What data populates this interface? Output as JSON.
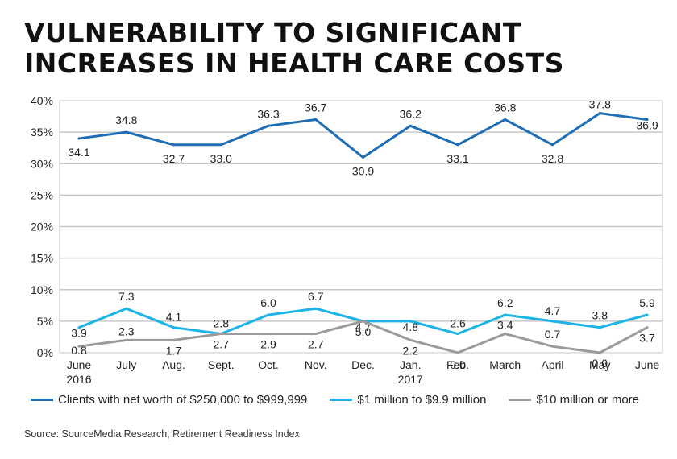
{
  "chart_data": {
    "type": "line",
    "title": "VULNERABILITY TO SIGNIFICANT INCREASES IN HEALTH CARE COSTS",
    "categories": [
      [
        "June",
        "2016"
      ],
      [
        "July"
      ],
      [
        "Aug."
      ],
      [
        "Sept."
      ],
      [
        "Oct."
      ],
      [
        "Nov."
      ],
      [
        "Dec."
      ],
      [
        "Jan.",
        "2017"
      ],
      [
        "Feb."
      ],
      [
        "March"
      ],
      [
        "April"
      ],
      [
        "May"
      ],
      [
        "June"
      ]
    ],
    "ylim": [
      0,
      40
    ],
    "yticks": [
      0,
      5,
      10,
      15,
      20,
      25,
      30,
      35,
      40
    ],
    "ytick_labels": [
      "0%",
      "5%",
      "10%",
      "15%",
      "20%",
      "25%",
      "30%",
      "35%",
      "40%"
    ],
    "series": [
      {
        "name": "Clients with net worth of $250,000 to $999,999",
        "color": "#1f6db3",
        "values": [
          34,
          35,
          33,
          33,
          36,
          37,
          31,
          36,
          33,
          37,
          33,
          38,
          37
        ],
        "labels": [
          "34.1",
          "34.8",
          "32.7",
          "33.0",
          "36.3",
          "36.7",
          "30.9",
          "36.2",
          "33.1",
          "36.8",
          "32.8",
          "37.8",
          "36.9"
        ]
      },
      {
        "name": "$1 million to $9.9 million",
        "color": "#1cb3e6",
        "values": [
          4,
          7,
          4,
          3,
          6,
          7,
          5,
          5,
          3,
          6,
          5,
          4,
          6
        ],
        "labels": [
          "3.9",
          "7.3",
          "4.1",
          "2.8",
          "6.0",
          "6.7",
          "4.7",
          "4.8",
          "2.6",
          "6.2",
          "4.7",
          "3.8",
          "5.9"
        ]
      },
      {
        "name": "$10 million or more",
        "color": "#9b9b9b",
        "values": [
          1,
          2,
          2,
          3,
          3,
          3,
          5,
          2,
          0,
          3,
          1,
          0,
          4
        ],
        "labels": [
          "0.8",
          "2.3",
          "1.7",
          "2.7",
          "2.9",
          "2.7",
          "5.0",
          "2.2",
          "0.0",
          "3.4",
          "0.7",
          "0.0",
          "3.7"
        ]
      }
    ],
    "source": "Source: SourceMedia Research, Retirement Readiness Index"
  }
}
